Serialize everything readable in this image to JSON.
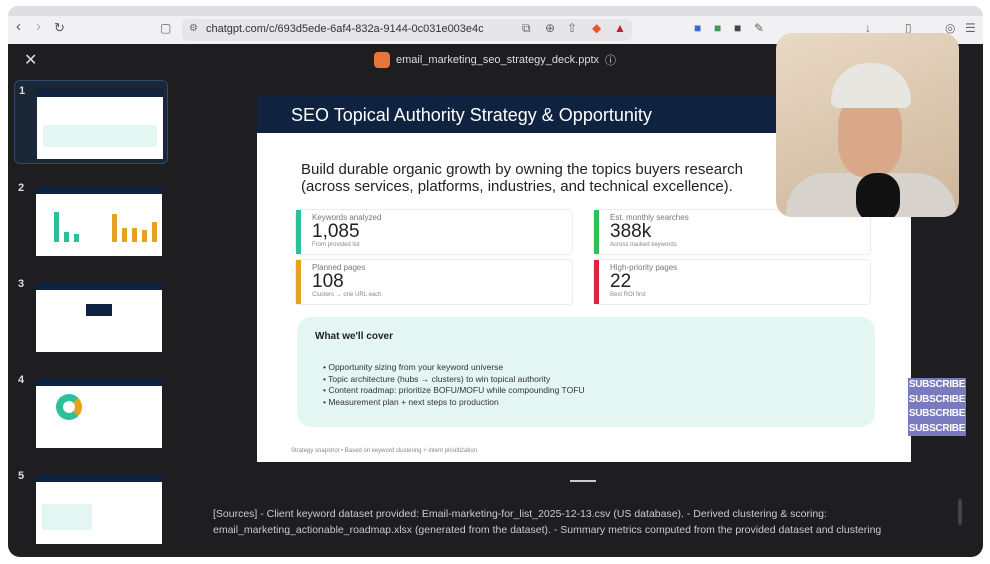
{
  "browser": {
    "url": "chatgpt.com/c/693d5ede-6af4-832a-9144-0c031e003e4c"
  },
  "viewer": {
    "file_name": "email_marketing_seo_strategy_deck.pptx",
    "close_label": "✕"
  },
  "thumbnails": [
    {
      "number": "1"
    },
    {
      "number": "2"
    },
    {
      "number": "3"
    },
    {
      "number": "4"
    },
    {
      "number": "5"
    }
  ],
  "slide": {
    "title": "SEO Topical Authority Strategy & Opportunity",
    "subtitle": "Build durable organic growth by owning the topics buyers research (across services, platforms, industries, and technical excellence).",
    "cards": [
      {
        "label": "Keywords analyzed",
        "value": "1,085",
        "note": "From provided list",
        "color": "#2bbf9a"
      },
      {
        "label": "Est. monthly searches",
        "value": "388k",
        "note": "Across tracked keywords",
        "color": "#2ec05a"
      },
      {
        "label": "Planned pages",
        "value": "108",
        "note": "Clusters → one URL each",
        "color": "#e4a21f"
      },
      {
        "label": "High-priority pages",
        "value": "22",
        "note": "Best ROI first",
        "color": "#d8283c"
      }
    ],
    "cover_title": "What we'll cover",
    "cover_items": [
      "• Opportunity sizing from your keyword universe",
      "• Topic architecture (hubs → clusters) to win topical authority",
      "• Content roadmap: prioritize BOFU/MOFU while compounding TOFU",
      "• Measurement plan + next steps to production"
    ],
    "footer": "Strategy snapshot • Based on keyword clustering + intent prioritization"
  },
  "sources": "[Sources] - Client keyword dataset provided: Email-marketing-for_list_2025-12-13.csv (US database). - Derived clustering & scoring: email_marketing_actionable_roadmap.xlsx (generated from the dataset). - Summary metrics computed from the provided dataset and clustering",
  "overlay": {
    "subscribe": [
      "SUBSCRIBE",
      "SUBSCRIBE",
      "SUBSCRIBE",
      "SUBSCRIBE"
    ]
  }
}
